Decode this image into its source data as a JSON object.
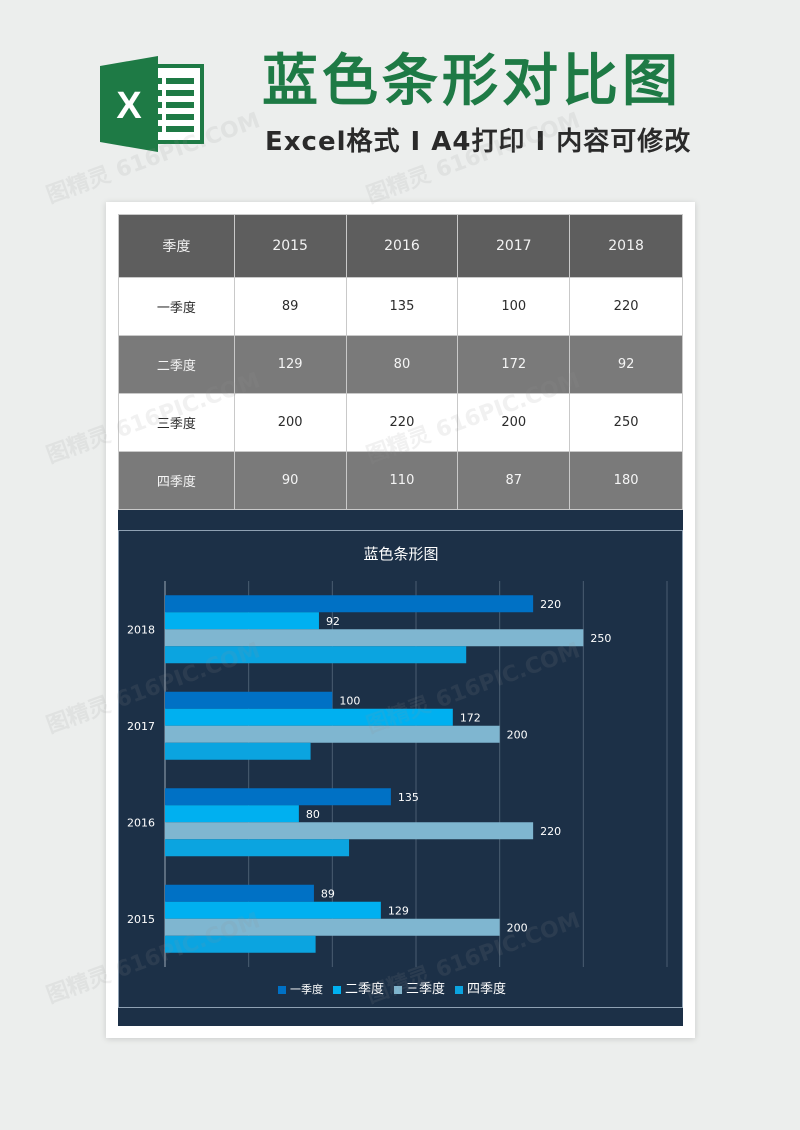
{
  "header": {
    "logo_letter": "X",
    "title": "蓝色条形对比图",
    "subtitle": "Excel格式 I A4打印 I 内容可修改"
  },
  "table": {
    "headers": [
      "季度",
      "2015",
      "2016",
      "2017",
      "2018"
    ],
    "rows": [
      [
        "一季度",
        "89",
        "135",
        "100",
        "220"
      ],
      [
        "二季度",
        "129",
        "80",
        "172",
        "92"
      ],
      [
        "三季度",
        "200",
        "220",
        "200",
        "250"
      ],
      [
        "四季度",
        "90",
        "110",
        "87",
        "180"
      ]
    ]
  },
  "watermark": "图精灵 616PIC.COM",
  "colors": {
    "sheet_bg": "#1c3047",
    "brand_green": "#1e7a45",
    "series": [
      "#0071c5",
      "#00b0f0",
      "#7fb6d0",
      "#0ba4e0"
    ]
  },
  "chart_data": {
    "type": "bar",
    "orientation": "horizontal",
    "title": "蓝色条形图",
    "categories": [
      "2015",
      "2016",
      "2017",
      "2018"
    ],
    "series": [
      {
        "name": "一季度",
        "values": [
          89,
          135,
          100,
          220
        ],
        "labeled": true
      },
      {
        "name": "二季度",
        "values": [
          129,
          80,
          172,
          92
        ],
        "labeled": true
      },
      {
        "name": "三季度",
        "values": [
          200,
          220,
          200,
          250
        ],
        "labeled": true
      },
      {
        "name": "四季度",
        "values": [
          90,
          110,
          87,
          180
        ],
        "labeled": false
      }
    ],
    "xlim": [
      0,
      300
    ],
    "grid": true,
    "legend": "bottom"
  }
}
